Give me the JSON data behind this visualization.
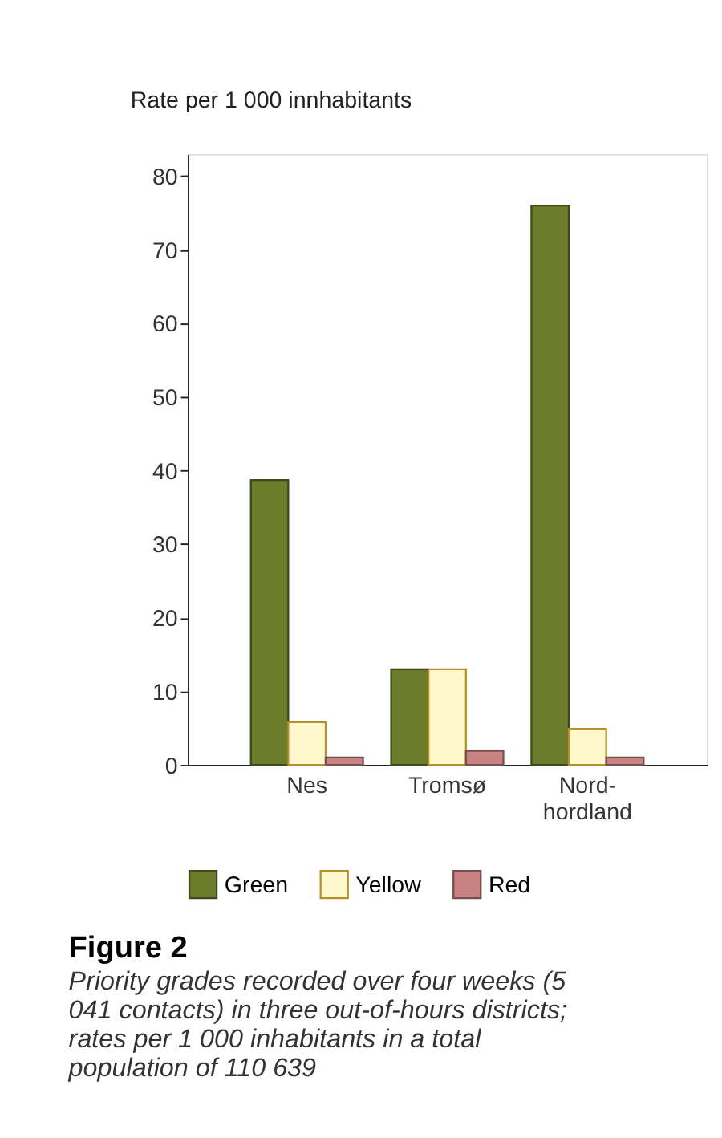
{
  "chart_data": {
    "type": "bar",
    "title": "Figure 2",
    "subtitle": "Priority grades recorded over four weeks (5 041 contacts) in three out-of-hours districts; rates per 1 000 inhabitants in a total population of 110 639",
    "ylabel": "Rate per 1 000 innhabitants",
    "categories": [
      "Nes",
      "Tromsø",
      "Nord-\nhordland"
    ],
    "series": [
      {
        "name": "Green",
        "color": "#6b7c2a",
        "values": [
          38.7,
          13,
          76
        ]
      },
      {
        "name": "Yellow",
        "color": "#fff8cc",
        "values": [
          5.8,
          13,
          4.9
        ]
      },
      {
        "name": "Red",
        "color": "#c98282",
        "values": [
          1.0,
          1.9,
          1.0
        ]
      }
    ],
    "ylim": [
      0,
      83
    ],
    "yticks": [
      0,
      10,
      20,
      30,
      40,
      50,
      60,
      70,
      80
    ],
    "grid": false,
    "legend": "bottom"
  }
}
